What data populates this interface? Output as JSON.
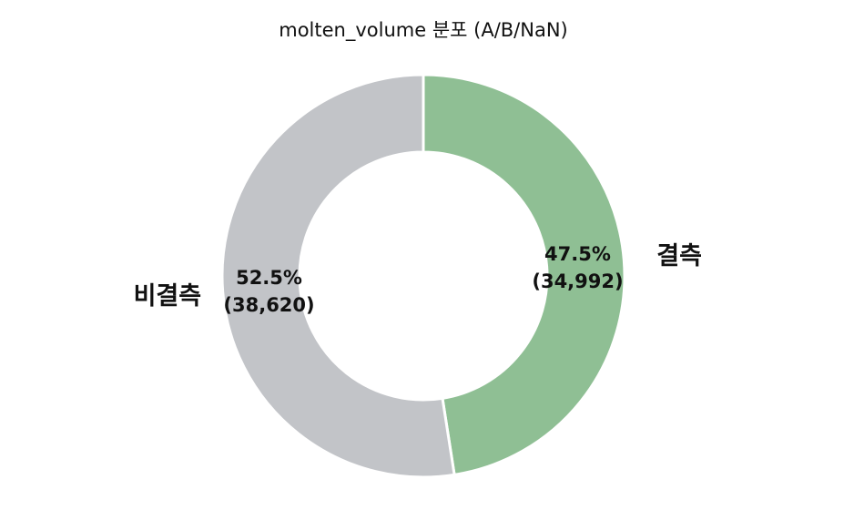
{
  "chart_data": {
    "type": "pie",
    "style": "donut",
    "title": "molten_volume 분포 (A/B/NaN)",
    "slices": [
      {
        "label": "결측",
        "value": 34992,
        "percent_label": "47.5%",
        "count_label": "(34,992)",
        "color": "#8fbf94"
      },
      {
        "label": "비결측",
        "value": 38620,
        "percent_label": "52.5%",
        "count_label": "(38,620)",
        "color": "#c2c4c8"
      }
    ],
    "start": "top",
    "direction": "clockwise",
    "separator_color": "#ffffff"
  }
}
